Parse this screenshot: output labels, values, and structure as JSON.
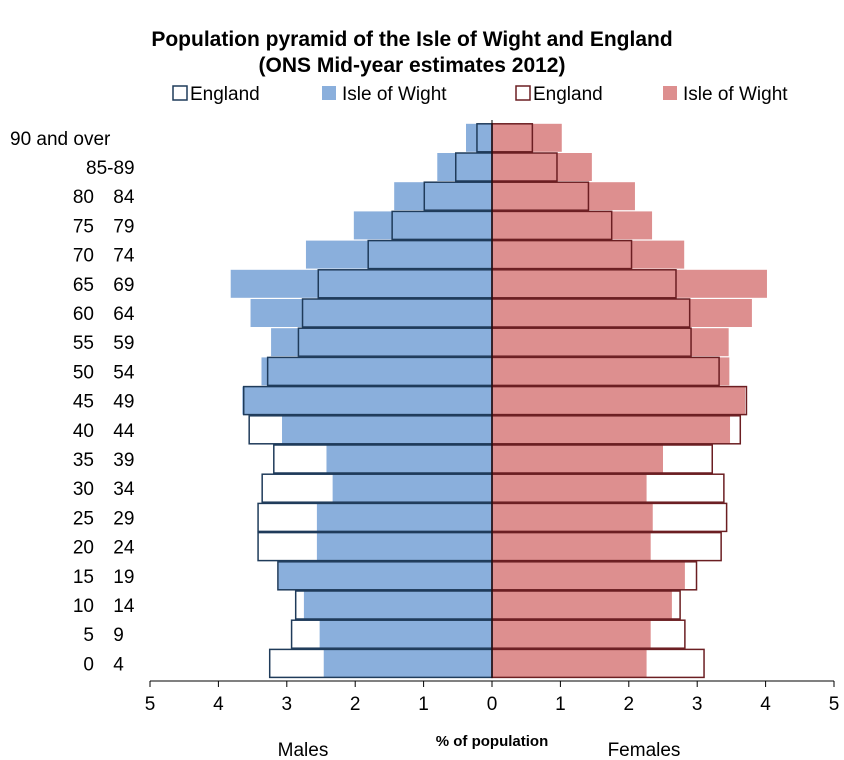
{
  "chart_data": {
    "type": "bar",
    "orientation": "horizontal-pyramid",
    "title": "Population pyramid of the Isle of Wight and England",
    "subtitle": "(ONS Mid-year estimates 2012)",
    "xlabel": "% of population",
    "side_labels": {
      "left": "Males",
      "right": "Females"
    },
    "xlim": [
      -5,
      5
    ],
    "x_ticks": [
      -5,
      -4,
      -3,
      -2,
      -1,
      0,
      1,
      2,
      3,
      4,
      5
    ],
    "x_tick_labels": [
      "5",
      "4",
      "3",
      "2",
      "1",
      "0",
      "1",
      "2",
      "3",
      "4",
      "5"
    ],
    "grid": false,
    "legend_position": "top",
    "categories": [
      "0 4",
      "5 9",
      "10 14",
      "15 19",
      "20 24",
      "25 29",
      "30 34",
      "35 39",
      "40 44",
      "45 49",
      "50 54",
      "55 59",
      "60 64",
      "65 69",
      "70 74",
      "75 79",
      "80 84",
      "85-89",
      "90 and over"
    ],
    "series": [
      {
        "name": "England",
        "side": "male",
        "style": "outline",
        "color": "#1f3b5a",
        "values": [
          3.25,
          2.93,
          2.87,
          3.13,
          3.42,
          3.42,
          3.36,
          3.19,
          3.55,
          3.63,
          3.28,
          2.83,
          2.77,
          2.54,
          1.81,
          1.46,
          0.99,
          0.53,
          0.22
        ]
      },
      {
        "name": "Isle of Wight",
        "side": "male",
        "style": "filled",
        "color": "#8aafdc",
        "values": [
          2.46,
          2.52,
          2.75,
          3.12,
          2.56,
          2.56,
          2.33,
          2.42,
          3.07,
          3.65,
          3.37,
          3.23,
          3.53,
          3.82,
          2.72,
          2.02,
          1.43,
          0.8,
          0.38
        ]
      },
      {
        "name": "England",
        "side": "female",
        "style": "outline",
        "color": "#6b1e22",
        "values": [
          3.1,
          2.82,
          2.75,
          2.99,
          3.35,
          3.43,
          3.39,
          3.22,
          3.63,
          3.72,
          3.32,
          2.91,
          2.89,
          2.69,
          2.04,
          1.75,
          1.41,
          0.95,
          0.59
        ]
      },
      {
        "name": "Isle of Wight",
        "side": "female",
        "style": "filled",
        "color": "#dd8f8f",
        "values": [
          2.26,
          2.32,
          2.63,
          2.82,
          2.32,
          2.35,
          2.26,
          2.5,
          3.48,
          3.7,
          3.47,
          3.46,
          3.8,
          4.02,
          2.81,
          2.34,
          2.09,
          1.46,
          1.02
        ]
      }
    ]
  }
}
